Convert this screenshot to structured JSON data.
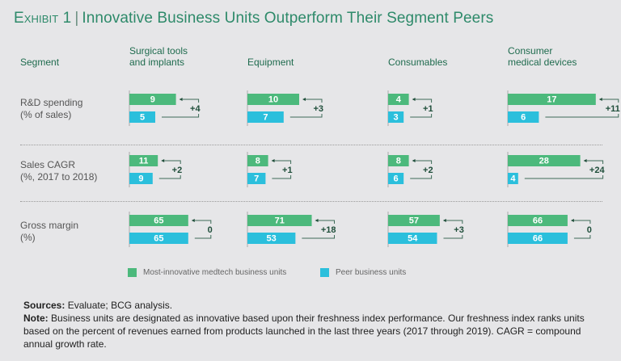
{
  "title": {
    "exhibit": "Exhibit 1",
    "separator": "|",
    "text": "Innovative Business Units Outperform Their Segment Peers"
  },
  "colors": {
    "innovative": "#4cb97c",
    "peer": "#2bbfdc",
    "title": "#2e8a6a",
    "diff": "#1f4e3a"
  },
  "chart_data": {
    "type": "bar",
    "title": "Innovative Business Units Outperform Their Segment Peers",
    "segment_header": "Segment",
    "segments": [
      "Surgical tools and implants",
      "Equipment",
      "Consumables",
      "Consumer medical devices"
    ],
    "segment_header_lines": [
      [
        "Surgical tools",
        "and implants"
      ],
      [
        "Equipment"
      ],
      [
        "Consumables"
      ],
      [
        "Consumer",
        "medical devices"
      ]
    ],
    "metrics": [
      {
        "name": "R&D spending",
        "unit": "(% of sales)",
        "innovative": [
          9,
          10,
          4,
          17
        ],
        "peer": [
          5,
          7,
          3,
          6
        ],
        "difference": [
          "+4",
          "+3",
          "+1",
          "+11"
        ]
      },
      {
        "name": "Sales CAGR",
        "unit": "(%, 2017 to 2018)",
        "innovative": [
          11,
          8,
          8,
          28
        ],
        "peer": [
          9,
          7,
          6,
          4
        ],
        "difference": [
          "+2",
          "+1",
          "+2",
          "+24"
        ]
      },
      {
        "name": "Gross margin",
        "unit": "(%)",
        "innovative": [
          65,
          71,
          57,
          66
        ],
        "peer": [
          65,
          53,
          54,
          66
        ],
        "difference": [
          "0",
          "+18",
          "+3",
          "0"
        ]
      }
    ],
    "legend": [
      {
        "label": "Most-innovative medtech business units",
        "series": "innovative"
      },
      {
        "label": "Peer business units",
        "series": "peer"
      }
    ],
    "legend_position": "bottom"
  },
  "footer": {
    "sources_label": "Sources:",
    "sources_text": "Evaluate; BCG analysis.",
    "note_label": "Note:",
    "note_text": "Business units are designated as innovative based upon their freshness index performance. Our freshness index ranks units based on the percent of revenues earned from products launched in the last three years (2017 through 2019). CAGR = compound annual growth rate."
  }
}
